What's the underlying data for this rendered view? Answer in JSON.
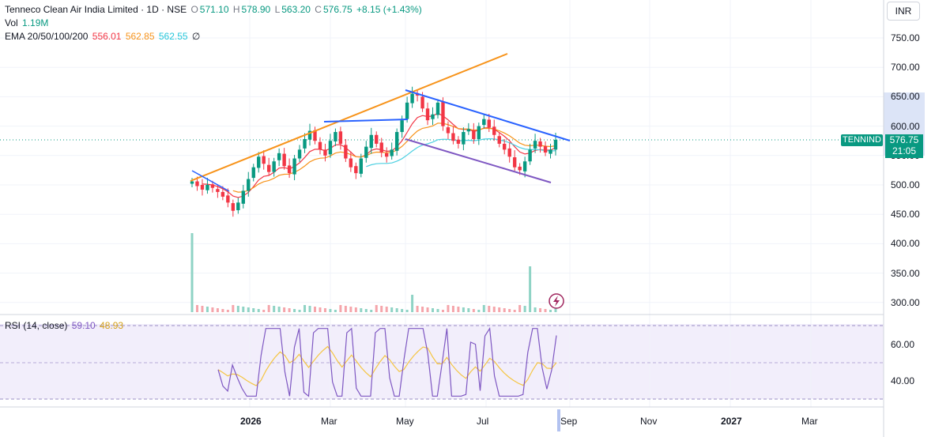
{
  "header": {
    "title": "Tenneco Clean Air India Limited · 1D · NSE",
    "open_label": "O",
    "open": "571.10",
    "high_label": "H",
    "high": "578.90",
    "low_label": "L",
    "low": "563.20",
    "close_label": "C",
    "close": "576.75",
    "change": "+8.15 (+1.43%)",
    "vol_label": "Vol",
    "vol": "1.19M",
    "ema_label": "EMA 20/50/100/200",
    "ema20": "556.01",
    "ema50": "562.85",
    "ema100": "562.55",
    "ema200": "∅"
  },
  "currency": "INR",
  "price_axis": [
    "750.00",
    "700.00",
    "650.00",
    "600.00",
    "550.00",
    "500.00",
    "450.00",
    "400.00",
    "350.00",
    "300.00"
  ],
  "rsi_axis": [
    "60.00",
    "40.00"
  ],
  "symbol_tag": "TENNIND",
  "last_price": "576.75",
  "countdown": "21:05",
  "rsi_legend": {
    "label": "RSI (14, close)",
    "rsi": "59.10",
    "ma": "48.93"
  },
  "time_axis": [
    {
      "label": "2026",
      "bold": true
    },
    {
      "label": "Mar",
      "bold": false
    },
    {
      "label": "May",
      "bold": false
    },
    {
      "label": "Jul",
      "bold": false
    },
    {
      "label": "Sep",
      "bold": false
    },
    {
      "label": "Nov",
      "bold": false
    },
    {
      "label": "2027",
      "bold": true
    },
    {
      "label": "Mar",
      "bold": false
    }
  ],
  "colors": {
    "up": "#089981",
    "down": "#f23645",
    "ema20": "#f23645",
    "ema50": "#f7931a",
    "ema100": "#4dd0e1",
    "rsi": "#7e57c2",
    "rsi_ma": "#f5c542",
    "trend_orange": "#f7931a",
    "trend_blue": "#2962ff",
    "trend_purple": "#7e57c2"
  },
  "icons": {
    "flash": "lightning-icon"
  },
  "chart_data": {
    "type": "candlestick",
    "series": [
      {
        "name": "Price",
        "values": [
          506,
          498,
          492,
          500,
          495,
          488,
          480,
          470,
          456,
          470,
          490,
          510,
          530,
          548,
          536,
          522,
          540,
          554,
          532,
          520,
          545,
          560,
          578,
          592,
          575,
          560,
          550,
          575,
          590,
          570,
          545,
          530,
          520,
          545,
          565,
          585,
          570,
          555,
          548,
          560,
          590,
          610,
          640,
          655,
          652,
          630,
          610,
          620,
          640,
          600,
          588,
          575,
          570,
          590,
          595,
          578,
          600,
          612,
          598,
          585,
          570,
          560,
          548,
          530,
          525,
          540,
          560,
          575,
          565,
          555,
          560,
          576.75
        ]
      }
    ],
    "ylim": [
      290,
      775
    ],
    "volume_spikes": [
      "large",
      "large"
    ],
    "rsi": {
      "ylim": [
        30,
        80
      ]
    }
  }
}
